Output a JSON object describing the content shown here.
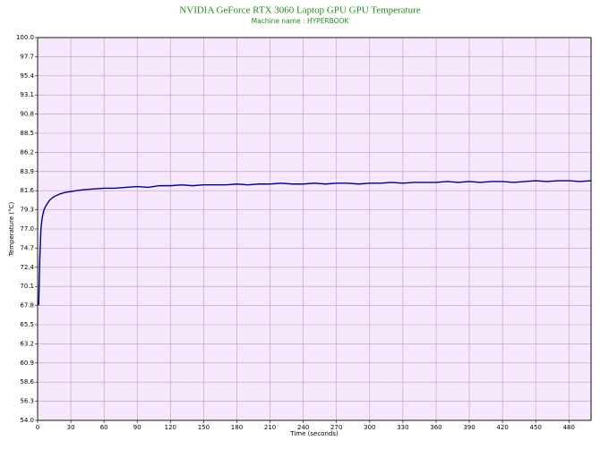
{
  "chart_data": {
    "type": "line",
    "title": "NVIDIA GeForce RTX 3060 Laptop GPU GPU Temperature",
    "subtitle": "Machine name : HYPERBOOK",
    "xlabel": "Time (seconds)",
    "ylabel": "Temperature (°C)",
    "x": [
      0,
      1,
      2,
      3,
      4,
      5,
      6,
      8,
      10,
      12,
      15,
      20,
      25,
      30,
      35,
      40,
      50,
      60,
      70,
      80,
      90,
      100,
      110,
      120,
      130,
      140,
      150,
      160,
      170,
      180,
      190,
      200,
      210,
      220,
      230,
      240,
      250,
      260,
      270,
      280,
      290,
      300,
      310,
      320,
      330,
      340,
      350,
      360,
      370,
      380,
      390,
      400,
      410,
      420,
      430,
      440,
      450,
      460,
      470,
      480,
      490,
      500
    ],
    "series": [
      {
        "name": "GPU Temperature",
        "color": "#00008b",
        "values": [
          68.2,
          67.9,
          73.5,
          77.0,
          78.2,
          78.9,
          79.4,
          79.9,
          80.3,
          80.6,
          80.9,
          81.2,
          81.4,
          81.5,
          81.6,
          81.7,
          81.8,
          81.9,
          81.9,
          82.0,
          82.1,
          82.0,
          82.2,
          82.2,
          82.3,
          82.2,
          82.3,
          82.3,
          82.3,
          82.4,
          82.3,
          82.4,
          82.4,
          82.5,
          82.4,
          82.4,
          82.5,
          82.4,
          82.5,
          82.5,
          82.4,
          82.5,
          82.5,
          82.6,
          82.5,
          82.6,
          82.6,
          82.6,
          82.7,
          82.6,
          82.7,
          82.6,
          82.7,
          82.7,
          82.6,
          82.7,
          82.8,
          82.7,
          82.8,
          82.8,
          82.7,
          82.8
        ]
      }
    ],
    "xlim": [
      0,
      500
    ],
    "xticks": [
      0,
      30,
      60,
      90,
      120,
      150,
      180,
      210,
      240,
      270,
      300,
      330,
      360,
      390,
      420,
      450,
      480
    ],
    "ylim": [
      54,
      100
    ],
    "yticks": [
      {
        "value": 100,
        "label": "100.0"
      },
      97.7,
      95.4,
      93.1,
      90.8,
      88.5,
      86.2,
      83.9,
      81.6,
      79.3,
      {
        "value": 77,
        "label": "77.0"
      },
      74.7,
      72.4,
      70.1,
      67.8,
      65.5,
      63.2,
      60.9,
      58.6,
      56.3,
      {
        "value": 54,
        "label": "54.0"
      }
    ],
    "grid": true
  }
}
